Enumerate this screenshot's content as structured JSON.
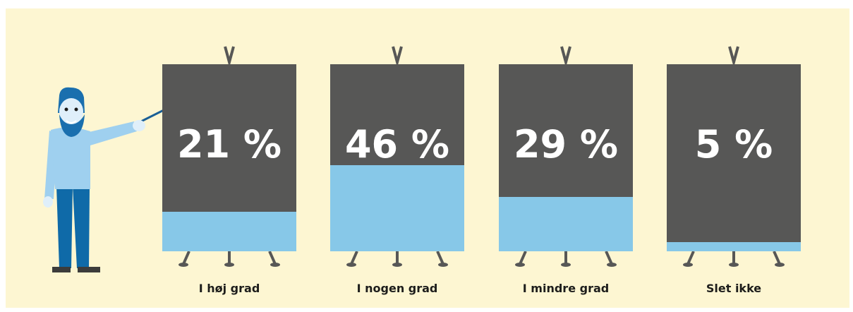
{
  "chart_data": {
    "type": "bar",
    "categories": [
      "I høj grad",
      "I nogen grad",
      "I mindre grad",
      "Slet ikke"
    ],
    "values": [
      21,
      46,
      29,
      5
    ],
    "value_labels": [
      "21 %",
      "46 %",
      "29 %",
      "5 %"
    ],
    "ylim": [
      0,
      100
    ],
    "title": "",
    "xlabel": "",
    "ylabel": ""
  },
  "colors": {
    "background": "#fdf6d2",
    "board": "#575756",
    "fill": "#87c8e8",
    "label": "#1d1d1b"
  },
  "illustration": {
    "figure": "teacher-with-pointer-icon"
  }
}
